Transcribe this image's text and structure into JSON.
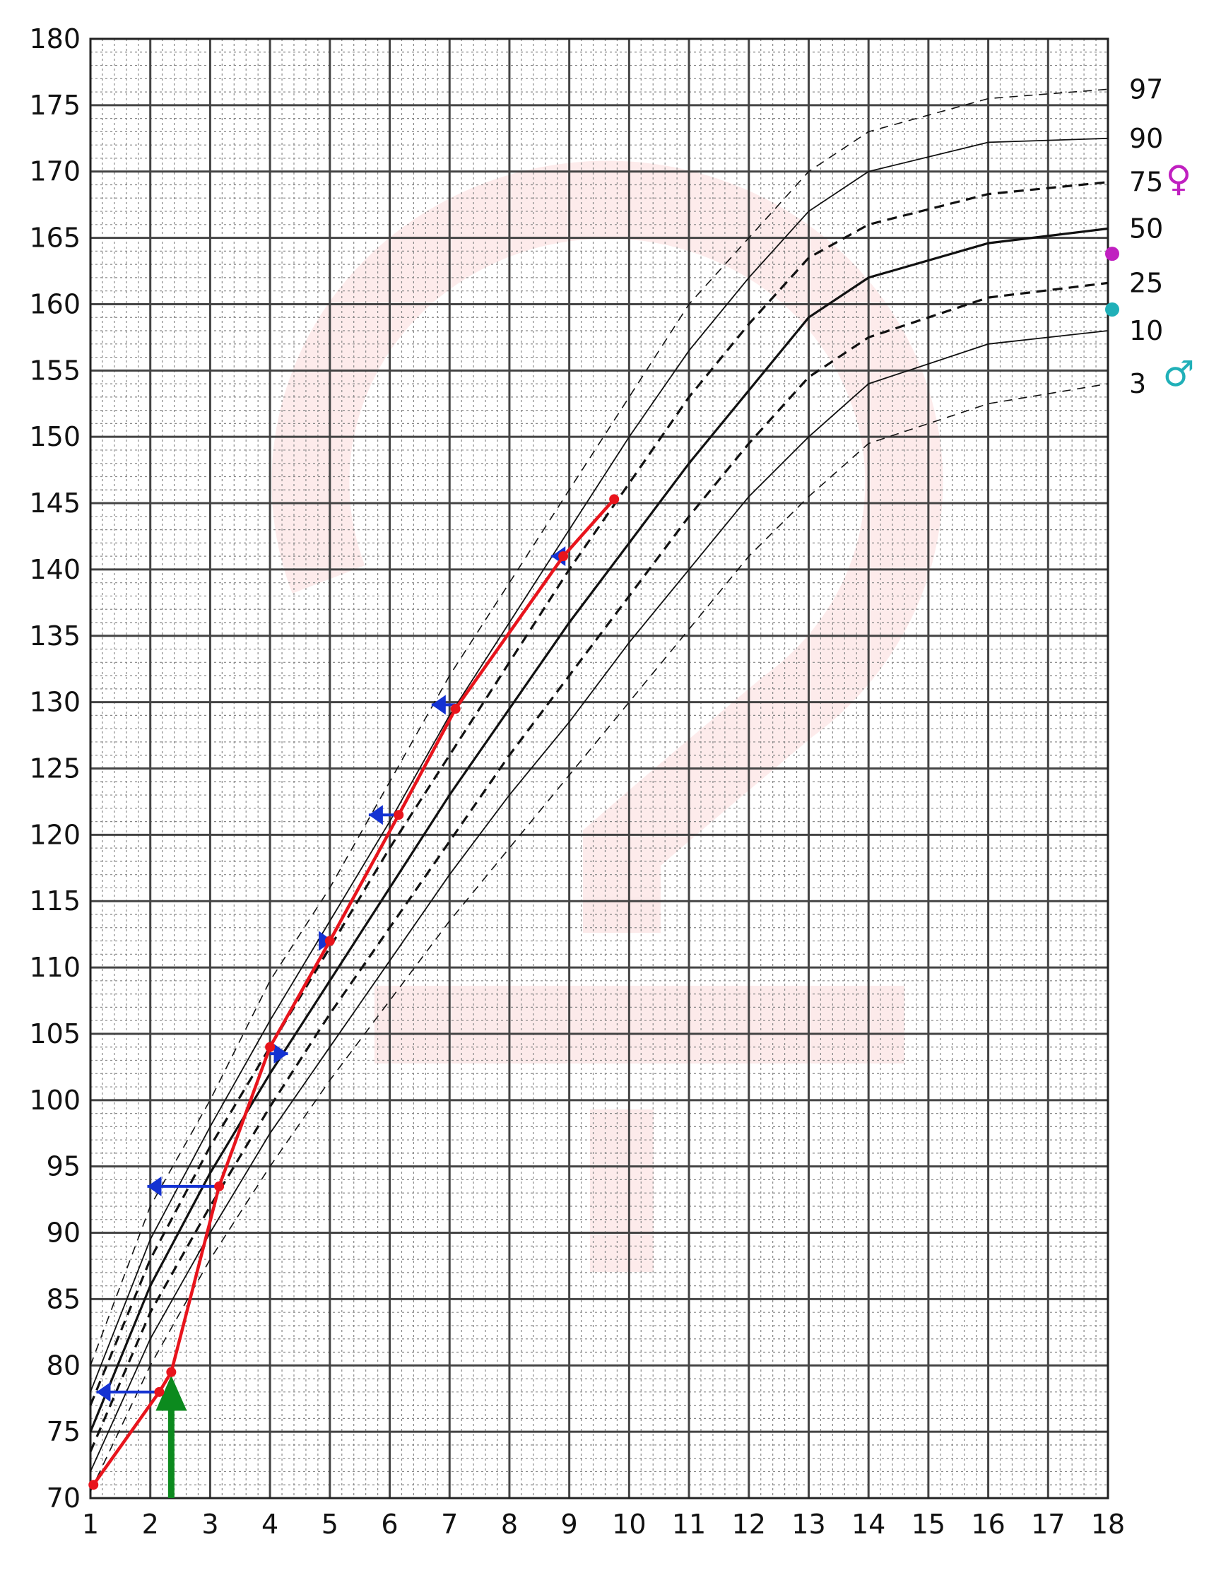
{
  "chart_data": {
    "type": "line",
    "title": "",
    "xlabel": "",
    "ylabel": "",
    "xlim": [
      1,
      18
    ],
    "ylim": [
      70,
      180
    ],
    "x_ticks": [
      "1",
      "2",
      "3",
      "4",
      "5",
      "6",
      "7",
      "8",
      "9",
      "10",
      "11",
      "12",
      "13",
      "14",
      "15",
      "16",
      "17",
      "18"
    ],
    "y_ticks": [
      "70",
      "75",
      "80",
      "85",
      "90",
      "95",
      "100",
      "105",
      "110",
      "115",
      "120",
      "125",
      "130",
      "135",
      "140",
      "145",
      "150",
      "155",
      "160",
      "165",
      "170",
      "175",
      "180"
    ],
    "grid": true,
    "reference_percentiles": [
      {
        "name": "97",
        "style": "dashed-thin",
        "points": [
          [
            1,
            80
          ],
          [
            2,
            92
          ],
          [
            3,
            100
          ],
          [
            4,
            109
          ],
          [
            5,
            116
          ],
          [
            6,
            124
          ],
          [
            7,
            132
          ],
          [
            8,
            139
          ],
          [
            9,
            146
          ],
          [
            10,
            153
          ],
          [
            11,
            160
          ],
          [
            12,
            165
          ],
          [
            13,
            170
          ],
          [
            14,
            173
          ],
          [
            16,
            175.5
          ],
          [
            18,
            176.2
          ]
        ]
      },
      {
        "name": "90",
        "style": "solid-thin",
        "points": [
          [
            1,
            78
          ],
          [
            2,
            89.5
          ],
          [
            3,
            98
          ],
          [
            4,
            106
          ],
          [
            5,
            113.5
          ],
          [
            6,
            121
          ],
          [
            7,
            129
          ],
          [
            8,
            136
          ],
          [
            9,
            143
          ],
          [
            10,
            150
          ],
          [
            11,
            156.5
          ],
          [
            12,
            162
          ],
          [
            13,
            167
          ],
          [
            14,
            170
          ],
          [
            16,
            172.2
          ],
          [
            18,
            172.5
          ]
        ]
      },
      {
        "name": "75",
        "style": "dashed",
        "points": [
          [
            1,
            77
          ],
          [
            2,
            88
          ],
          [
            3,
            96.5
          ],
          [
            4,
            104
          ],
          [
            5,
            111.5
          ],
          [
            6,
            119
          ],
          [
            7,
            126
          ],
          [
            8,
            133
          ],
          [
            9,
            140
          ],
          [
            10,
            146.5
          ],
          [
            11,
            153
          ],
          [
            12,
            158.5
          ],
          [
            13,
            163.5
          ],
          [
            14,
            166
          ],
          [
            16,
            168.3
          ],
          [
            18,
            169.2
          ]
        ]
      },
      {
        "name": "50",
        "style": "solid",
        "points": [
          [
            1,
            75
          ],
          [
            2,
            86
          ],
          [
            3,
            94.5
          ],
          [
            4,
            102
          ],
          [
            5,
            109
          ],
          [
            6,
            116
          ],
          [
            7,
            123
          ],
          [
            8,
            129.5
          ],
          [
            9,
            136
          ],
          [
            10,
            142
          ],
          [
            11,
            148
          ],
          [
            12,
            153.5
          ],
          [
            13,
            159
          ],
          [
            14,
            162
          ],
          [
            16,
            164.6
          ],
          [
            18,
            165.7
          ]
        ]
      },
      {
        "name": "25",
        "style": "dashed",
        "points": [
          [
            1,
            73.5
          ],
          [
            2,
            84
          ],
          [
            3,
            92
          ],
          [
            4,
            99.5
          ],
          [
            5,
            106.5
          ],
          [
            6,
            113
          ],
          [
            7,
            119.5
          ],
          [
            8,
            126
          ],
          [
            9,
            132
          ],
          [
            10,
            138
          ],
          [
            11,
            144
          ],
          [
            12,
            149.5
          ],
          [
            13,
            154.5
          ],
          [
            14,
            157.5
          ],
          [
            16,
            160.5
          ],
          [
            18,
            161.6
          ]
        ]
      },
      {
        "name": "10",
        "style": "solid-thin",
        "points": [
          [
            1,
            72
          ],
          [
            2,
            82
          ],
          [
            3,
            90
          ],
          [
            4,
            97.5
          ],
          [
            5,
            104
          ],
          [
            6,
            110.5
          ],
          [
            7,
            117
          ],
          [
            8,
            123
          ],
          [
            9,
            128.5
          ],
          [
            10,
            134.5
          ],
          [
            11,
            140
          ],
          [
            12,
            145.5
          ],
          [
            13,
            150
          ],
          [
            14,
            154
          ],
          [
            16,
            157
          ],
          [
            18,
            158
          ]
        ]
      },
      {
        "name": "3",
        "style": "dashed-thin",
        "points": [
          [
            1,
            70.5
          ],
          [
            2,
            80
          ],
          [
            3,
            88
          ],
          [
            4,
            95
          ],
          [
            5,
            101.5
          ],
          [
            6,
            107.5
          ],
          [
            7,
            113.5
          ],
          [
            8,
            119
          ],
          [
            9,
            124.5
          ],
          [
            10,
            130
          ],
          [
            11,
            135.5
          ],
          [
            12,
            141
          ],
          [
            13,
            145.5
          ],
          [
            14,
            149.5
          ],
          [
            16,
            152.5
          ],
          [
            18,
            154
          ]
        ]
      }
    ],
    "measured": {
      "color": "#e8141c",
      "points": [
        [
          1.05,
          71
        ],
        [
          2.15,
          78
        ],
        [
          2.35,
          79.5
        ],
        [
          3.15,
          93.5
        ],
        [
          4.0,
          104
        ],
        [
          5.0,
          112
        ],
        [
          6.15,
          121.5
        ],
        [
          7.1,
          129.5
        ],
        [
          8.9,
          141
        ],
        [
          9.75,
          145.3
        ]
      ]
    },
    "bone_age_arrows": {
      "color": "#1432d2",
      "arrows": [
        {
          "from": 2.15,
          "to": 1.1,
          "y": 78
        },
        {
          "from": 3.15,
          "to": 1.95,
          "y": 93.5
        },
        {
          "from": 4.0,
          "to": 4.3,
          "y": 103.5
        },
        {
          "from": 5.0,
          "to": 5.05,
          "y": 112
        },
        {
          "from": 6.15,
          "to": 5.65,
          "y": 121.5
        },
        {
          "from": 7.1,
          "to": 6.7,
          "y": 129.8
        },
        {
          "from": 8.9,
          "to": 8.7,
          "y": 141
        }
      ]
    },
    "treatment_start": {
      "color": "#0c8a1e",
      "x": 2.35,
      "y_from": 70,
      "y_to": 78.5
    },
    "parent_markers": [
      {
        "symbol": "♀",
        "color": "#c020c0",
        "y": 163.8,
        "label_y": 169.5
      },
      {
        "symbol": "♂",
        "color": "#20b0b8",
        "y": 159.6,
        "label_y": 154.8
      }
    ],
    "percentile_label_y": {
      "97": 176.2,
      "90": 172.5,
      "75": 169.2,
      "50": 165.7,
      "25": 161.6,
      "10": 158.0,
      "3": 154.0
    }
  }
}
